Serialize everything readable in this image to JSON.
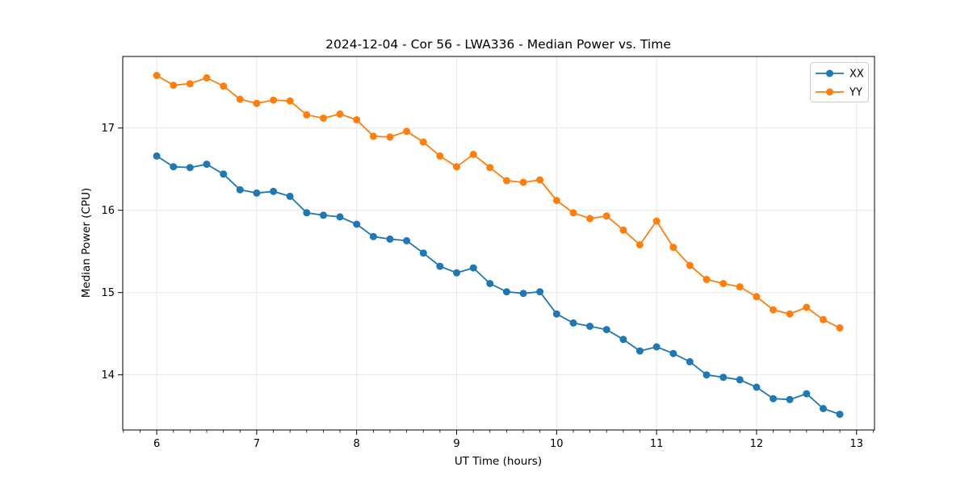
{
  "chart_data": {
    "type": "line",
    "title": "2024-12-04 - Cor 56 - LWA336 - Median Power vs. Time",
    "xlabel": "UT Time (hours)",
    "ylabel": "Median Power (CPU)",
    "xlim": [
      5.66,
      13.18
    ],
    "ylim": [
      13.33,
      17.87
    ],
    "xticks": [
      6,
      7,
      8,
      9,
      10,
      11,
      12,
      13
    ],
    "yticks": [
      14,
      15,
      16,
      17
    ],
    "x_minor_tick_step_hours": 0.1667,
    "grid": true,
    "legend_position": "upper right",
    "marker": "circle",
    "x": [
      6.0,
      6.167,
      6.333,
      6.5,
      6.667,
      6.833,
      7.0,
      7.167,
      7.333,
      7.5,
      7.667,
      7.833,
      8.0,
      8.167,
      8.333,
      8.5,
      8.667,
      8.833,
      9.0,
      9.167,
      9.333,
      9.5,
      9.667,
      9.833,
      10.0,
      10.167,
      10.333,
      10.5,
      10.667,
      10.833,
      11.0,
      11.167,
      11.333,
      11.5,
      11.667,
      11.833,
      12.0,
      12.167,
      12.333,
      12.5,
      12.667,
      12.833
    ],
    "series": [
      {
        "name": "XX",
        "color": "#1f77b4",
        "values": [
          16.66,
          16.53,
          16.52,
          16.56,
          16.44,
          16.25,
          16.21,
          16.23,
          16.17,
          15.97,
          15.94,
          15.92,
          15.83,
          15.68,
          15.65,
          15.63,
          15.48,
          15.32,
          15.24,
          15.3,
          15.11,
          15.01,
          14.99,
          15.01,
          14.74,
          14.63,
          14.59,
          14.55,
          14.43,
          14.29,
          14.34,
          14.26,
          14.16,
          14.0,
          13.97,
          13.94,
          13.85,
          13.71,
          13.7,
          13.77,
          13.59,
          13.52
        ]
      },
      {
        "name": "YY",
        "color": "#ff7f0e",
        "values": [
          17.64,
          17.52,
          17.54,
          17.61,
          17.51,
          17.35,
          17.3,
          17.34,
          17.33,
          17.16,
          17.12,
          17.17,
          17.1,
          16.9,
          16.89,
          16.96,
          16.83,
          16.66,
          16.53,
          16.68,
          16.52,
          16.36,
          16.34,
          16.37,
          16.12,
          15.97,
          15.9,
          15.93,
          15.76,
          15.58,
          15.87,
          15.55,
          15.33,
          15.16,
          15.11,
          15.07,
          14.95,
          14.79,
          14.74,
          14.82,
          14.67,
          14.57
        ]
      }
    ],
    "colors": {
      "grid": "#e6e6e6",
      "spine": "#000000",
      "background": "#ffffff",
      "legend_border": "#cccccc"
    }
  }
}
